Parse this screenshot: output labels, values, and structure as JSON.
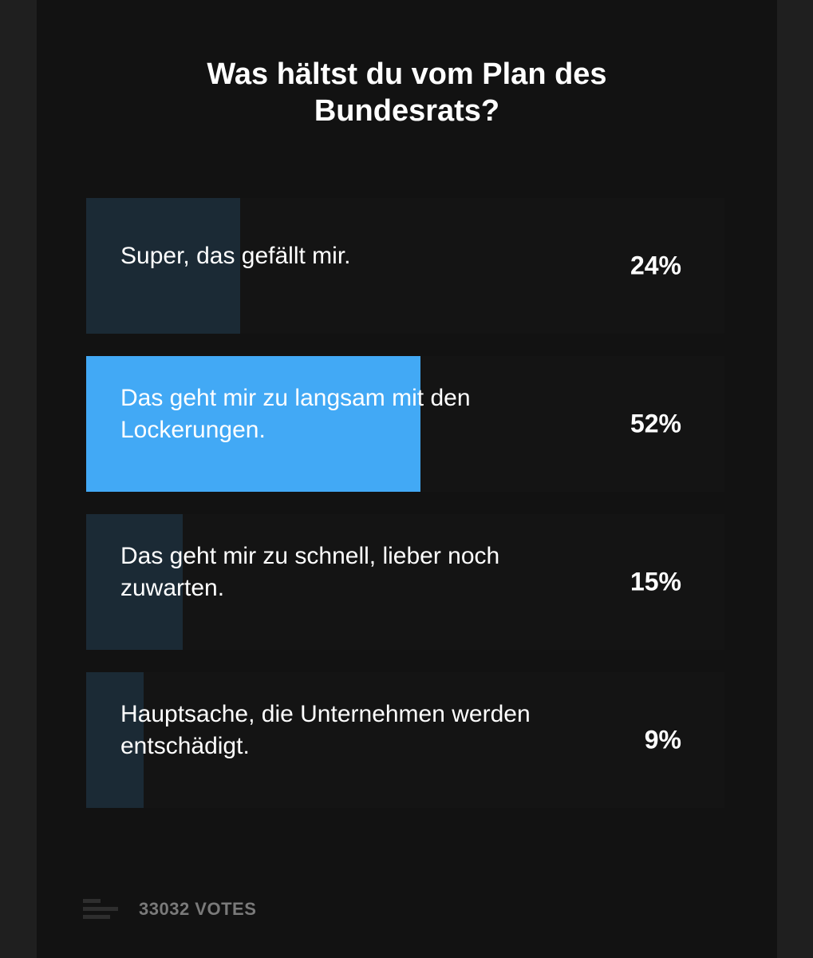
{
  "poll": {
    "question_lines": [
      "Was hältst du vom Plan des",
      "Bundesrats?"
    ],
    "options": [
      {
        "label": "Super, das gefällt mir.",
        "percent_label": "24%",
        "percent": 24,
        "selected": false
      },
      {
        "label": "Das geht mir zu langsam mit den Lockerungen.",
        "percent_label": "52%",
        "percent": 52,
        "selected": true
      },
      {
        "label": "Das geht mir zu schnell, lieber noch zuwarten.",
        "percent_label": "15%",
        "percent": 15,
        "selected": false
      },
      {
        "label": "Hauptsache, die Unternehmen werden entschädigt.",
        "percent_label": "9%",
        "percent": 9,
        "selected": false
      }
    ],
    "votes_label": "33032 VOTES"
  },
  "colors": {
    "background": "#121212",
    "bar_default": "#1b2a35",
    "bar_selected": "#42a9f5",
    "text": "#ffffff",
    "muted_text": "#7a7a7a"
  },
  "icons": {
    "votes": "bar-chart-icon"
  }
}
